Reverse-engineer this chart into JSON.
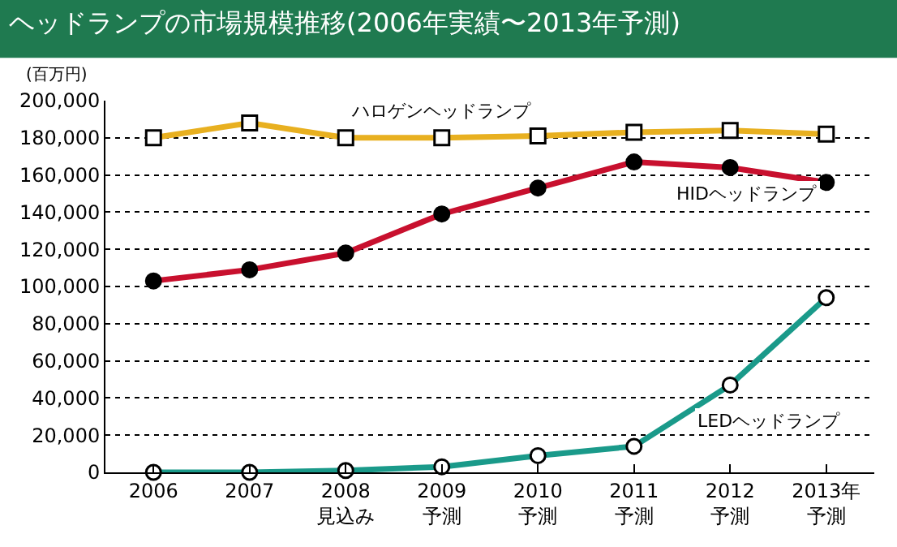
{
  "chart_data": {
    "type": "line",
    "title": "ヘッドランプの市場規模推移(2006年実績〜2013年予測)",
    "ylabel": "(百万円)",
    "categories": [
      "2006",
      "2007",
      "2008見込み",
      "2009予測",
      "2010予測",
      "2011予測",
      "2012予測",
      "2013年予測"
    ],
    "series": [
      {
        "name": "ハロゲンヘッドランプ",
        "color": "#e8b020",
        "marker": "square",
        "values": [
          180000,
          188000,
          180000,
          180000,
          181000,
          183000,
          184000,
          182000
        ]
      },
      {
        "name": "HIDヘッドランプ",
        "color": "#c8102e",
        "marker": "circle",
        "values": [
          103000,
          109000,
          118000,
          139000,
          153000,
          167000,
          164000,
          156000
        ]
      },
      {
        "name": "LEDヘッドランプ",
        "color": "#1a9a8a",
        "marker": "circle",
        "values": [
          0,
          0,
          1000,
          3000,
          9000,
          14000,
          47000,
          94000
        ]
      }
    ],
    "ylim": [
      0,
      200000
    ],
    "yticks": [
      {
        "value": 0,
        "label": "0"
      },
      {
        "value": 20000,
        "label": "20,000"
      },
      {
        "value": 40000,
        "label": "40,000"
      },
      {
        "value": 60000,
        "label": "60,000"
      },
      {
        "value": 80000,
        "label": "80,000"
      },
      {
        "value": 100000,
        "label": "100,000"
      },
      {
        "value": 120000,
        "label": "120,000"
      },
      {
        "value": 140000,
        "label": "140,000"
      },
      {
        "value": 160000,
        "label": "160,000"
      },
      {
        "value": 180000,
        "label": "180,000"
      },
      {
        "value": 200000,
        "label": "200,000"
      }
    ],
    "grid": "y",
    "legend": false,
    "line_style": "solid"
  }
}
